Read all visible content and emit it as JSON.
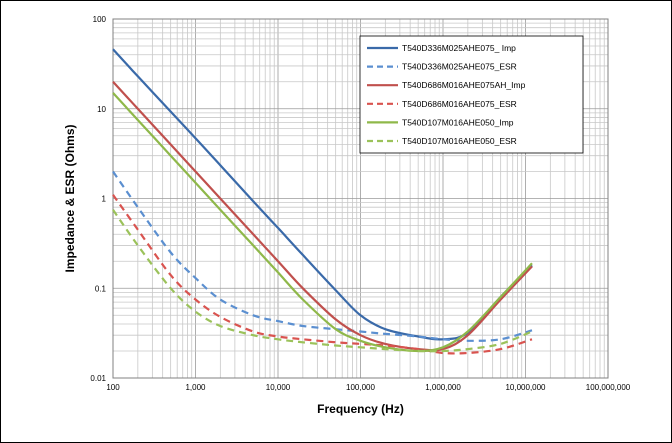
{
  "chart_data": {
    "type": "line",
    "title": "",
    "xlabel": "Frequency (Hz)",
    "ylabel": "Impedance & ESR (Ohms)",
    "x_scale": "log",
    "y_scale": "log",
    "xlim": [
      100,
      100000000
    ],
    "ylim": [
      0.01,
      100
    ],
    "grid": true,
    "legend_position": "top-right",
    "x_ticks": [
      "100",
      "1,000",
      "10,000",
      "100,000",
      "1,000,000",
      "10,000,000",
      "100,000,000"
    ],
    "y_ticks": [
      "0.01",
      "0.1",
      "1",
      "10",
      "100"
    ],
    "series": [
      {
        "name": "T540D336M025AHE075_ Imp",
        "color": "#3a6aa9",
        "dash": "solid",
        "points": [
          [
            100,
            46
          ],
          [
            200,
            23
          ],
          [
            500,
            9.3
          ],
          [
            1000,
            4.7
          ],
          [
            2000,
            2.35
          ],
          [
            5000,
            0.93
          ],
          [
            10000,
            0.47
          ],
          [
            20000,
            0.235
          ],
          [
            50000,
            0.095
          ],
          [
            100000,
            0.05
          ],
          [
            200000,
            0.035
          ],
          [
            500000,
            0.029
          ],
          [
            1000000,
            0.027
          ],
          [
            2000000,
            0.032
          ],
          [
            5000000,
            0.08
          ],
          [
            12000000,
            0.18
          ]
        ]
      },
      {
        "name": "T540D336M025AHE075_ESR",
        "color": "#5b8fd0",
        "dash": "dashed",
        "points": [
          [
            100,
            2.0
          ],
          [
            200,
            0.8
          ],
          [
            500,
            0.25
          ],
          [
            1000,
            0.13
          ],
          [
            2000,
            0.075
          ],
          [
            5000,
            0.05
          ],
          [
            10000,
            0.043
          ],
          [
            20000,
            0.038
          ],
          [
            50000,
            0.035
          ],
          [
            100000,
            0.033
          ],
          [
            200000,
            0.031
          ],
          [
            500000,
            0.029
          ],
          [
            1000000,
            0.027
          ],
          [
            2000000,
            0.026
          ],
          [
            5000000,
            0.027
          ],
          [
            12000000,
            0.034
          ]
        ]
      },
      {
        "name": "T540D686M016AHE075AH_Imp",
        "color": "#c0504d",
        "dash": "solid",
        "points": [
          [
            100,
            20
          ],
          [
            200,
            10
          ],
          [
            500,
            4.0
          ],
          [
            1000,
            2.0
          ],
          [
            2000,
            1.0
          ],
          [
            5000,
            0.4
          ],
          [
            10000,
            0.2
          ],
          [
            20000,
            0.1
          ],
          [
            50000,
            0.045
          ],
          [
            100000,
            0.03
          ],
          [
            200000,
            0.024
          ],
          [
            500000,
            0.021
          ],
          [
            1000000,
            0.021
          ],
          [
            2000000,
            0.03
          ],
          [
            5000000,
            0.075
          ],
          [
            12000000,
            0.175
          ]
        ]
      },
      {
        "name": "T540D686M016AHE075_ESR",
        "color": "#d9534f",
        "dash": "dashed",
        "points": [
          [
            100,
            1.1
          ],
          [
            200,
            0.45
          ],
          [
            500,
            0.14
          ],
          [
            1000,
            0.075
          ],
          [
            2000,
            0.048
          ],
          [
            5000,
            0.033
          ],
          [
            10000,
            0.029
          ],
          [
            20000,
            0.027
          ],
          [
            50000,
            0.025
          ],
          [
            100000,
            0.024
          ],
          [
            200000,
            0.023
          ],
          [
            500000,
            0.021
          ],
          [
            1000000,
            0.019
          ],
          [
            2000000,
            0.019
          ],
          [
            5000000,
            0.021
          ],
          [
            12000000,
            0.027
          ]
        ]
      },
      {
        "name": "T540D107M016AHE050_Imp",
        "color": "#8fb84a",
        "dash": "solid",
        "points": [
          [
            100,
            15
          ],
          [
            200,
            7.5
          ],
          [
            500,
            3.0
          ],
          [
            1000,
            1.5
          ],
          [
            2000,
            0.75
          ],
          [
            5000,
            0.3
          ],
          [
            10000,
            0.15
          ],
          [
            20000,
            0.075
          ],
          [
            50000,
            0.035
          ],
          [
            100000,
            0.026
          ],
          [
            200000,
            0.022
          ],
          [
            500000,
            0.02
          ],
          [
            1000000,
            0.022
          ],
          [
            2000000,
            0.033
          ],
          [
            5000000,
            0.08
          ],
          [
            12000000,
            0.19
          ]
        ]
      },
      {
        "name": "T540D107M016AHE050_ESR",
        "color": "#9bc25a",
        "dash": "dashed",
        "points": [
          [
            100,
            0.75
          ],
          [
            200,
            0.3
          ],
          [
            500,
            0.1
          ],
          [
            1000,
            0.055
          ],
          [
            2000,
            0.038
          ],
          [
            5000,
            0.03
          ],
          [
            10000,
            0.027
          ],
          [
            20000,
            0.025
          ],
          [
            50000,
            0.023
          ],
          [
            100000,
            0.022
          ],
          [
            200000,
            0.021
          ],
          [
            500000,
            0.02
          ],
          [
            1000000,
            0.02
          ],
          [
            2000000,
            0.021
          ],
          [
            5000000,
            0.024
          ],
          [
            12000000,
            0.033
          ]
        ]
      }
    ]
  }
}
